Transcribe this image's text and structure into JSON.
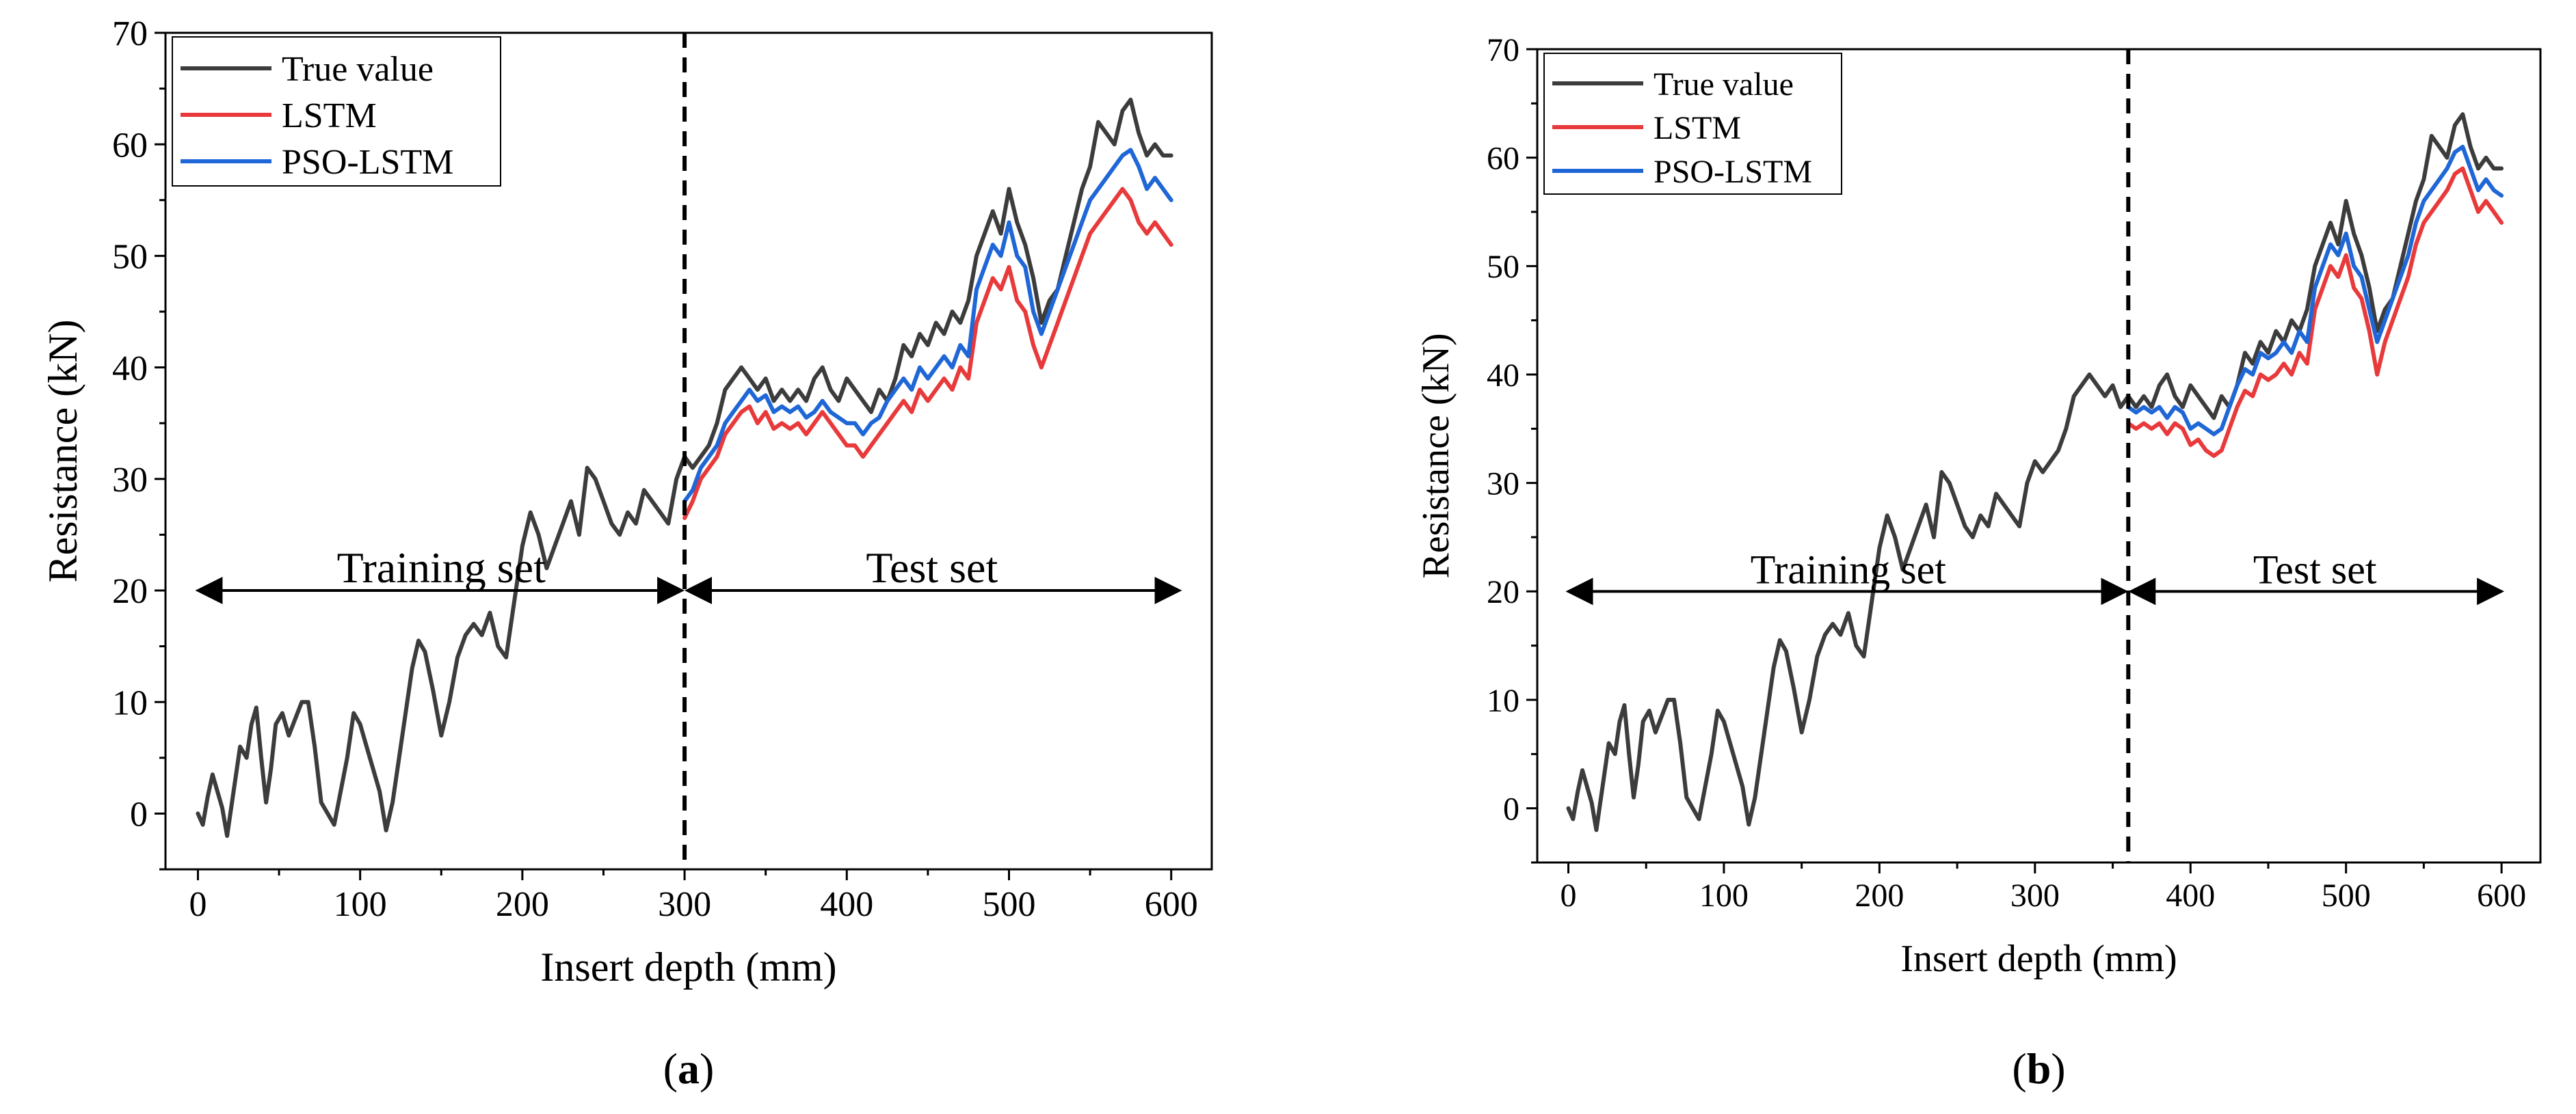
{
  "chart_data": [
    {
      "type": "line",
      "panel_label": "a",
      "xlabel": "Insert depth (mm)",
      "ylabel": "Resistance (kN)",
      "xlim": [
        -20,
        625
      ],
      "ylim": [
        -5,
        70
      ],
      "xticks": [
        0,
        100,
        200,
        300,
        400,
        500,
        600
      ],
      "yticks": [
        0,
        10,
        20,
        30,
        40,
        50,
        60,
        70
      ],
      "legend": [
        "True value",
        "LSTM",
        "PSO-LSTM"
      ],
      "legend_position": "top-left",
      "split_x": 300,
      "training_label": "Training set",
      "test_label": "Test set",
      "arrow_y": 20,
      "training_range": [
        0,
        300
      ],
      "test_range": [
        300,
        605
      ],
      "series": [
        {
          "name": "True value",
          "color": "#3c3c3c",
          "x": [
            0,
            3,
            6,
            9,
            12,
            15,
            18,
            22,
            26,
            30,
            33,
            36,
            39,
            42,
            45,
            48,
            52,
            56,
            60,
            64,
            68,
            72,
            76,
            80,
            84,
            88,
            92,
            96,
            100,
            104,
            108,
            112,
            116,
            120,
            124,
            128,
            132,
            136,
            140,
            145,
            150,
            155,
            160,
            165,
            170,
            175,
            180,
            185,
            190,
            195,
            200,
            205,
            210,
            215,
            220,
            225,
            230,
            235,
            240,
            245,
            250,
            255,
            260,
            265,
            270,
            275,
            280,
            285,
            290,
            295,
            300,
            305,
            310,
            315,
            320,
            325,
            330,
            335,
            340,
            345,
            350,
            355,
            360,
            365,
            370,
            375,
            380,
            385,
            390,
            395,
            400,
            405,
            410,
            415,
            420,
            425,
            430,
            435,
            440,
            445,
            450,
            455,
            460,
            465,
            470,
            475,
            480,
            485,
            490,
            495,
            500,
            505,
            510,
            515,
            520,
            525,
            530,
            535,
            540,
            545,
            550,
            555,
            560,
            565,
            570,
            575,
            580,
            585,
            590,
            595,
            600
          ],
          "y": [
            0,
            -1,
            1.5,
            3.5,
            2,
            0.5,
            -2,
            2,
            6,
            5,
            8,
            9.5,
            5,
            1,
            4,
            8,
            9,
            7,
            8.5,
            10,
            10,
            6,
            1,
            0,
            -1,
            2,
            5,
            9,
            8,
            6,
            4,
            2,
            -1.5,
            1,
            5,
            9,
            13,
            15.5,
            14.5,
            11,
            7,
            10,
            14,
            16,
            17,
            16,
            18,
            15,
            14,
            19,
            24,
            27,
            25,
            22,
            24,
            26,
            28,
            25,
            31,
            30,
            28,
            26,
            25,
            27,
            26,
            29,
            28,
            27,
            26,
            30,
            32,
            31,
            32,
            33,
            35,
            38,
            39,
            40,
            39,
            38,
            39,
            37,
            38,
            37,
            38,
            37,
            39,
            40,
            38,
            37,
            39,
            38,
            37,
            36,
            38,
            37,
            39,
            42,
            41,
            43,
            42,
            44,
            43,
            45,
            44,
            46,
            50,
            52,
            54,
            52,
            56,
            53,
            51,
            48,
            44,
            46,
            47,
            50,
            53,
            56,
            58,
            62,
            61,
            60,
            63,
            64,
            61,
            59,
            60,
            59,
            59
          ]
        },
        {
          "name": "LSTM",
          "color": "#e8393b",
          "x": [
            300,
            305,
            310,
            315,
            320,
            325,
            330,
            335,
            340,
            345,
            350,
            355,
            360,
            365,
            370,
            375,
            380,
            385,
            390,
            395,
            400,
            405,
            410,
            415,
            420,
            425,
            430,
            435,
            440,
            445,
            450,
            455,
            460,
            465,
            470,
            475,
            480,
            485,
            490,
            495,
            500,
            505,
            510,
            515,
            520,
            525,
            530,
            535,
            540,
            545,
            550,
            555,
            560,
            565,
            570,
            575,
            580,
            585,
            590,
            595,
            600
          ],
          "y": [
            26.5,
            28,
            30,
            31,
            32,
            34,
            35,
            36,
            36.5,
            35,
            36,
            34.5,
            35,
            34.5,
            35,
            34,
            35,
            36,
            35,
            34,
            33,
            33,
            32,
            33,
            34,
            35,
            36,
            37,
            36,
            38,
            37,
            38,
            39,
            38,
            40,
            39,
            44,
            46,
            48,
            47,
            49,
            46,
            45,
            42,
            40,
            42,
            44,
            46,
            48,
            50,
            52,
            53,
            54,
            55,
            56,
            55,
            53,
            52,
            53,
            52,
            51
          ]
        },
        {
          "name": "PSO-LSTM",
          "color": "#1f66d6",
          "x": [
            300,
            305,
            310,
            315,
            320,
            325,
            330,
            335,
            340,
            345,
            350,
            355,
            360,
            365,
            370,
            375,
            380,
            385,
            390,
            395,
            400,
            405,
            410,
            415,
            420,
            425,
            430,
            435,
            440,
            445,
            450,
            455,
            460,
            465,
            470,
            475,
            480,
            485,
            490,
            495,
            500,
            505,
            510,
            515,
            520,
            525,
            530,
            535,
            540,
            545,
            550,
            555,
            560,
            565,
            570,
            575,
            580,
            585,
            590,
            595,
            600
          ],
          "y": [
            28,
            29,
            31,
            32,
            33,
            35,
            36,
            37,
            38,
            37,
            37.5,
            36,
            36.5,
            36,
            36.5,
            35.5,
            36,
            37,
            36,
            35.5,
            35,
            35,
            34,
            35,
            35.5,
            37,
            38,
            39,
            38,
            40,
            39,
            40,
            41,
            40,
            42,
            41,
            47,
            49,
            51,
            50,
            53,
            50,
            49,
            45,
            43,
            45,
            47,
            49,
            51,
            53,
            55,
            56,
            57,
            58,
            59,
            59.5,
            58,
            56,
            57,
            56,
            55
          ]
        }
      ]
    },
    {
      "type": "line",
      "panel_label": "b",
      "xlabel": "Insert depth (mm)",
      "ylabel": "Resistance (kN)",
      "xlim": [
        -20,
        625
      ],
      "ylim": [
        -5,
        70
      ],
      "xticks": [
        0,
        100,
        200,
        300,
        400,
        500,
        600
      ],
      "yticks": [
        0,
        10,
        20,
        30,
        40,
        50,
        60,
        70
      ],
      "legend": [
        "True value",
        "LSTM",
        "PSO-LSTM"
      ],
      "legend_position": "top-left",
      "split_x": 360,
      "training_label": "Training set",
      "test_label": "Test set",
      "arrow_y": 20,
      "training_range": [
        0,
        360
      ],
      "test_range": [
        360,
        600
      ],
      "series": [
        {
          "name": "True value",
          "color": "#3c3c3c",
          "x": [
            0,
            3,
            6,
            9,
            12,
            15,
            18,
            22,
            26,
            30,
            33,
            36,
            39,
            42,
            45,
            48,
            52,
            56,
            60,
            64,
            68,
            72,
            76,
            80,
            84,
            88,
            92,
            96,
            100,
            104,
            108,
            112,
            116,
            120,
            124,
            128,
            132,
            136,
            140,
            145,
            150,
            155,
            160,
            165,
            170,
            175,
            180,
            185,
            190,
            195,
            200,
            205,
            210,
            215,
            220,
            225,
            230,
            235,
            240,
            245,
            250,
            255,
            260,
            265,
            270,
            275,
            280,
            285,
            290,
            295,
            300,
            305,
            310,
            315,
            320,
            325,
            330,
            335,
            340,
            345,
            350,
            355,
            360,
            365,
            370,
            375,
            380,
            385,
            390,
            395,
            400,
            405,
            410,
            415,
            420,
            425,
            430,
            435,
            440,
            445,
            450,
            455,
            460,
            465,
            470,
            475,
            480,
            485,
            490,
            495,
            500,
            505,
            510,
            515,
            520,
            525,
            530,
            535,
            540,
            545,
            550,
            555,
            560,
            565,
            570,
            575,
            580,
            585,
            590,
            595,
            600
          ],
          "y": [
            0,
            -1,
            1.5,
            3.5,
            2,
            0.5,
            -2,
            2,
            6,
            5,
            8,
            9.5,
            5,
            1,
            4,
            8,
            9,
            7,
            8.5,
            10,
            10,
            6,
            1,
            0,
            -1,
            2,
            5,
            9,
            8,
            6,
            4,
            2,
            -1.5,
            1,
            5,
            9,
            13,
            15.5,
            14.5,
            11,
            7,
            10,
            14,
            16,
            17,
            16,
            18,
            15,
            14,
            19,
            24,
            27,
            25,
            22,
            24,
            26,
            28,
            25,
            31,
            30,
            28,
            26,
            25,
            27,
            26,
            29,
            28,
            27,
            26,
            30,
            32,
            31,
            32,
            33,
            35,
            38,
            39,
            40,
            39,
            38,
            39,
            37,
            38,
            37,
            38,
            37,
            39,
            40,
            38,
            37,
            39,
            38,
            37,
            36,
            38,
            37,
            39,
            42,
            41,
            43,
            42,
            44,
            43,
            45,
            44,
            46,
            50,
            52,
            54,
            52,
            56,
            53,
            51,
            48,
            44,
            46,
            47,
            50,
            53,
            56,
            58,
            62,
            61,
            60,
            63,
            64,
            61,
            59,
            60,
            59,
            59
          ]
        },
        {
          "name": "LSTM",
          "color": "#e8393b",
          "x": [
            360,
            365,
            370,
            375,
            380,
            385,
            390,
            395,
            400,
            405,
            410,
            415,
            420,
            425,
            430,
            435,
            440,
            445,
            450,
            455,
            460,
            465,
            470,
            475,
            480,
            485,
            490,
            495,
            500,
            505,
            510,
            515,
            520,
            525,
            530,
            535,
            540,
            545,
            550,
            555,
            560,
            565,
            570,
            575,
            580,
            585,
            590,
            595,
            600
          ],
          "y": [
            35.5,
            35,
            35.5,
            35,
            35.5,
            34.5,
            35.5,
            35,
            33.5,
            34,
            33,
            32.5,
            33,
            35,
            37,
            38.5,
            38,
            40,
            39.5,
            40,
            41,
            40,
            42,
            41,
            46,
            48,
            50,
            49,
            51,
            48,
            47,
            44,
            40,
            43,
            45,
            47,
            49,
            52,
            54,
            55,
            56,
            57,
            58.5,
            59,
            57,
            55,
            56,
            55,
            54
          ]
        },
        {
          "name": "PSO-LSTM",
          "color": "#1f66d6",
          "x": [
            360,
            365,
            370,
            375,
            380,
            385,
            390,
            395,
            400,
            405,
            410,
            415,
            420,
            425,
            430,
            435,
            440,
            445,
            450,
            455,
            460,
            465,
            470,
            475,
            480,
            485,
            490,
            495,
            500,
            505,
            510,
            515,
            520,
            525,
            530,
            535,
            540,
            545,
            550,
            555,
            560,
            565,
            570,
            575,
            580,
            585,
            590,
            595,
            600
          ],
          "y": [
            37,
            36.5,
            37,
            36.5,
            37,
            36,
            37,
            36.5,
            35,
            35.5,
            35,
            34.5,
            35,
            37,
            39,
            40.5,
            40,
            42,
            41.5,
            42,
            43,
            42,
            44,
            43,
            48,
            50,
            52,
            51,
            53,
            50,
            49,
            46,
            43,
            45,
            47,
            49,
            51,
            54,
            56,
            57,
            58,
            59,
            60.5,
            61,
            59,
            57,
            58,
            57,
            56.5
          ]
        }
      ]
    }
  ]
}
